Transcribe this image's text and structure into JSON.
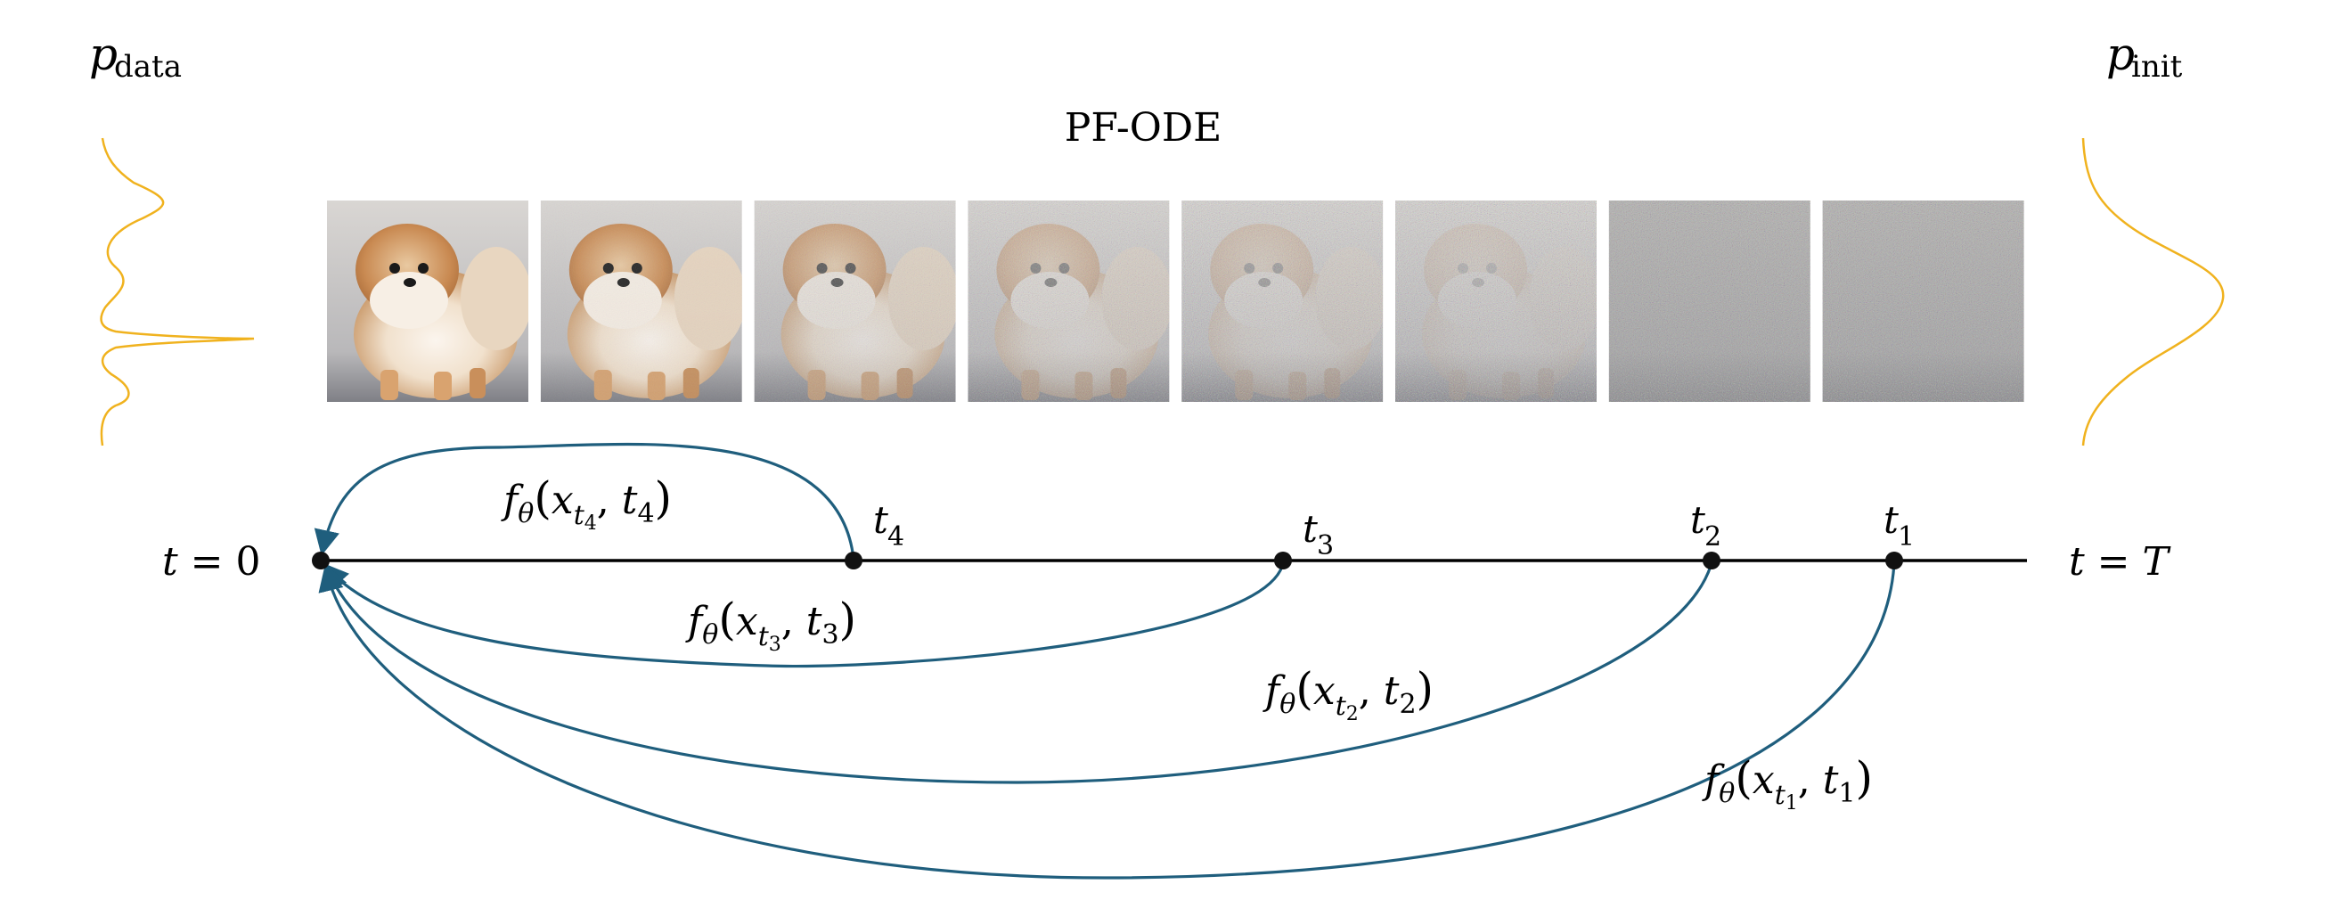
{
  "labels": {
    "p_data": {
      "base": "p",
      "sub": "data"
    },
    "p_init": {
      "base": "p",
      "sub": "init"
    },
    "pf_ode": "PF-ODE",
    "t_zero": {
      "lhs": "t",
      "eq": " = ",
      "rhs": "0"
    },
    "t_end": {
      "lhs": "t",
      "eq": " = ",
      "rhs": "T"
    }
  },
  "colors": {
    "arrow": "#1f5e7d",
    "distribution": "#f0b21e",
    "axis": "#000000"
  },
  "timesteps": [
    {
      "id": "t4",
      "base": "t",
      "sub": "4"
    },
    {
      "id": "t3",
      "base": "t",
      "sub": "3"
    },
    {
      "id": "t2",
      "base": "t",
      "sub": "2"
    },
    {
      "id": "t1",
      "base": "t",
      "sub": "1"
    }
  ],
  "functions": [
    {
      "id": "f4",
      "f": "f",
      "theta": "θ",
      "x": "x",
      "xsub": "t",
      "xsubsub": "4",
      "t": "t",
      "tsub": "4"
    },
    {
      "id": "f3",
      "f": "f",
      "theta": "θ",
      "x": "x",
      "xsub": "t",
      "xsubsub": "3",
      "t": "t",
      "tsub": "3"
    },
    {
      "id": "f2",
      "f": "f",
      "theta": "θ",
      "x": "x",
      "xsub": "t",
      "xsubsub": "2",
      "t": "t",
      "tsub": "2"
    },
    {
      "id": "f1",
      "f": "f",
      "theta": "θ",
      "x": "x",
      "xsub": "t",
      "xsubsub": "1",
      "t": "t",
      "tsub": "1"
    }
  ],
  "image_strip": {
    "noise_levels": [
      0.0,
      0.08,
      0.3,
      0.5,
      0.62,
      0.72,
      1.0,
      1.0
    ]
  }
}
